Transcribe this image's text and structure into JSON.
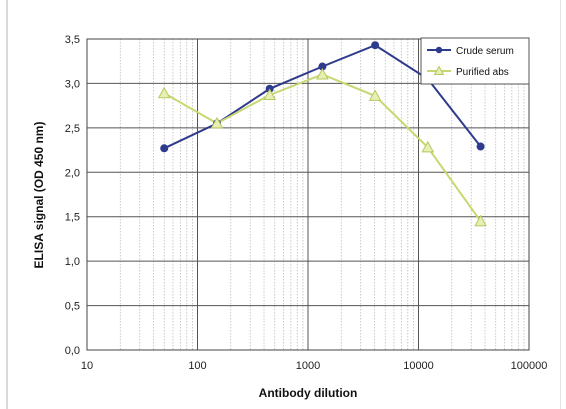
{
  "chart_data": {
    "type": "line",
    "xscale": "log",
    "xlim": [
      10,
      100000
    ],
    "ylim": [
      0,
      3.5
    ],
    "xticks": [
      "10",
      "100",
      "1000",
      "10000",
      "100000"
    ],
    "yticks": [
      "0,0",
      "0,5",
      "1,0",
      "1,5",
      "2,0",
      "2,5",
      "3,0",
      "3,5"
    ],
    "xlabel": "Antibody dilution",
    "ylabel": "ELISA signal (OD 450 nm)",
    "grid": true,
    "legend": "top-right",
    "series": [
      {
        "name": "Crude serum",
        "color": "#2e3a8c",
        "marker": "circle",
        "x": [
          50,
          150,
          450,
          1350,
          4050,
          12150,
          36450
        ],
        "y": [
          2.27,
          2.55,
          2.94,
          3.19,
          3.43,
          3.05,
          2.29
        ]
      },
      {
        "name": "Purified abs",
        "color": "#c8d870",
        "marker": "triangle",
        "x": [
          50,
          150,
          450,
          1350,
          4050,
          12150,
          36450
        ],
        "y": [
          2.89,
          2.55,
          2.87,
          3.1,
          2.86,
          2.28,
          1.45
        ]
      }
    ]
  }
}
